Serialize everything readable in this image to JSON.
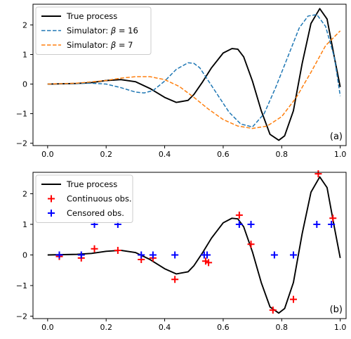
{
  "chart_data": [
    {
      "type": "line",
      "panel_label": "(a)",
      "xlim": [
        -0.05,
        1.02
      ],
      "ylim": [
        -2.08,
        2.7
      ],
      "xticks": [
        0.0,
        0.2,
        0.4,
        0.6,
        0.8,
        1.0
      ],
      "xtick_labels": [
        "0.0",
        "0.2",
        "0.4",
        "0.6",
        "0.8",
        "1.0"
      ],
      "yticks": [
        -2,
        -1,
        0,
        1,
        2
      ],
      "ytick_labels": [
        "−2",
        "−1",
        "0",
        "1",
        "2"
      ],
      "grid": false,
      "legend_position": "top-left",
      "series": [
        {
          "name": "True process",
          "color": "#000000",
          "style": "solid",
          "x": [
            0.0,
            0.1,
            0.15,
            0.2,
            0.25,
            0.3,
            0.35,
            0.4,
            0.44,
            0.48,
            0.5,
            0.53,
            0.56,
            0.6,
            0.63,
            0.65,
            0.67,
            0.7,
            0.73,
            0.76,
            0.79,
            0.81,
            0.84,
            0.87,
            0.9,
            0.93,
            0.955,
            0.98,
            1.0
          ],
          "y": [
            0.0,
            0.02,
            0.05,
            0.12,
            0.15,
            0.08,
            -0.15,
            -0.45,
            -0.62,
            -0.55,
            -0.35,
            0.08,
            0.55,
            1.05,
            1.2,
            1.18,
            0.92,
            0.1,
            -0.9,
            -1.7,
            -1.9,
            -1.75,
            -0.9,
            0.7,
            2.05,
            2.55,
            2.2,
            0.9,
            -0.1
          ]
        },
        {
          "name": "Simulator: β = 16",
          "label_prefix": "Simulator: ",
          "label_symbol": "β",
          "label_suffix": " = 16",
          "color": "#1f77b4",
          "style": "dashed",
          "x": [
            0.0,
            0.1,
            0.15,
            0.2,
            0.25,
            0.3,
            0.33,
            0.36,
            0.4,
            0.44,
            0.48,
            0.5,
            0.52,
            0.55,
            0.58,
            0.62,
            0.66,
            0.7,
            0.74,
            0.78,
            0.82,
            0.86,
            0.89,
            0.92,
            0.95,
            0.98,
            1.0
          ],
          "y": [
            0.0,
            0.02,
            0.03,
            0.0,
            -0.12,
            -0.27,
            -0.3,
            -0.22,
            0.1,
            0.5,
            0.72,
            0.7,
            0.55,
            0.1,
            -0.35,
            -0.95,
            -1.35,
            -1.45,
            -1.0,
            -0.1,
            0.9,
            1.9,
            2.3,
            2.35,
            1.95,
            0.9,
            -0.4
          ]
        },
        {
          "name": "Simulator: β = 7",
          "label_prefix": "Simulator: ",
          "label_symbol": "β",
          "label_suffix": " = 7",
          "color": "#ff7f0e",
          "style": "dashed",
          "x": [
            0.0,
            0.1,
            0.2,
            0.25,
            0.3,
            0.35,
            0.4,
            0.45,
            0.5,
            0.55,
            0.6,
            0.65,
            0.7,
            0.75,
            0.8,
            0.85,
            0.9,
            0.95,
            1.0
          ],
          "y": [
            0.0,
            0.03,
            0.12,
            0.2,
            0.25,
            0.25,
            0.15,
            -0.08,
            -0.45,
            -0.85,
            -1.2,
            -1.42,
            -1.5,
            -1.42,
            -1.1,
            -0.45,
            0.4,
            1.3,
            1.8
          ]
        }
      ]
    },
    {
      "type": "line+scatter",
      "panel_label": "(b)",
      "xlim": [
        -0.05,
        1.02
      ],
      "ylim": [
        -2.08,
        2.7
      ],
      "xticks": [
        0.0,
        0.2,
        0.4,
        0.6,
        0.8,
        1.0
      ],
      "xtick_labels": [
        "0.0",
        "0.2",
        "0.4",
        "0.6",
        "0.8",
        "1.0"
      ],
      "yticks": [
        -2,
        -1,
        0,
        1,
        2
      ],
      "ytick_labels": [
        "−2",
        "−1",
        "0",
        "1",
        "2"
      ],
      "grid": false,
      "legend_position": "top-left",
      "series": [
        {
          "name": "True process",
          "color": "#000000",
          "style": "solid",
          "x": [
            0.0,
            0.1,
            0.15,
            0.2,
            0.25,
            0.3,
            0.35,
            0.4,
            0.44,
            0.48,
            0.5,
            0.53,
            0.56,
            0.6,
            0.63,
            0.65,
            0.67,
            0.7,
            0.73,
            0.76,
            0.79,
            0.81,
            0.84,
            0.87,
            0.9,
            0.93,
            0.955,
            0.98,
            1.0
          ],
          "y": [
            0.0,
            0.02,
            0.05,
            0.12,
            0.15,
            0.08,
            -0.15,
            -0.45,
            -0.62,
            -0.55,
            -0.35,
            0.08,
            0.55,
            1.05,
            1.2,
            1.18,
            0.92,
            0.1,
            -0.9,
            -1.7,
            -1.9,
            -1.75,
            -0.9,
            0.7,
            2.05,
            2.55,
            2.2,
            0.9,
            -0.1
          ]
        }
      ],
      "scatter": [
        {
          "name": "Continuous obs.",
          "color": "#ff0000",
          "marker": "plus",
          "x": [
            0.04,
            0.115,
            0.16,
            0.24,
            0.32,
            0.36,
            0.435,
            0.54,
            0.55,
            0.655,
            0.695,
            0.77,
            0.84,
            0.925,
            0.975
          ],
          "y": [
            -0.05,
            -0.1,
            0.2,
            0.15,
            -0.15,
            -0.1,
            -0.8,
            -0.2,
            -0.25,
            1.3,
            0.35,
            -1.8,
            -1.45,
            2.65,
            1.2
          ]
        },
        {
          "name": "Censored obs.",
          "color": "#0000ff",
          "marker": "plus",
          "x": [
            0.04,
            0.115,
            0.16,
            0.24,
            0.32,
            0.36,
            0.435,
            0.535,
            0.545,
            0.655,
            0.695,
            0.775,
            0.84,
            0.92,
            0.97
          ],
          "y": [
            0,
            0,
            1,
            1,
            0,
            0,
            0,
            0,
            0,
            1,
            1,
            0,
            0,
            1,
            1
          ]
        }
      ]
    }
  ]
}
